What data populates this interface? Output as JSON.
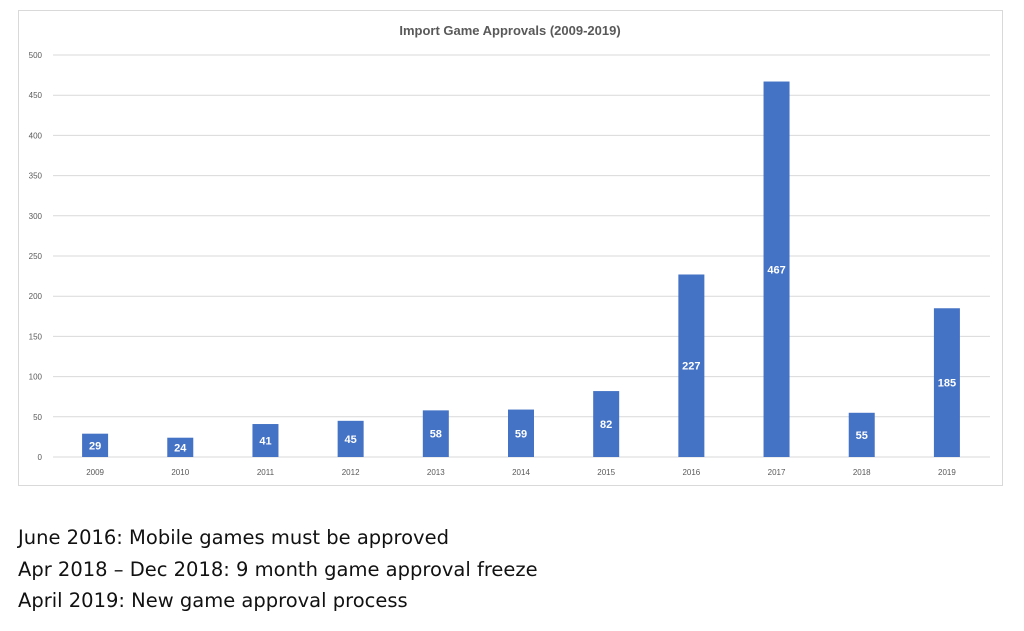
{
  "chart_data": {
    "type": "bar",
    "title": "Import Game Approvals (2009-2019)",
    "categories": [
      "2009",
      "2010",
      "2011",
      "2012",
      "2013",
      "2014",
      "2015",
      "2016",
      "2017",
      "2018",
      "2019"
    ],
    "values": [
      29,
      24,
      41,
      45,
      58,
      59,
      82,
      227,
      467,
      55,
      185
    ],
    "data_labels": [
      "29",
      "24",
      "41",
      "45",
      "58",
      "59",
      "82",
      "227",
      "467",
      "55",
      "185"
    ],
    "yticks": [
      "0",
      "50",
      "100",
      "150",
      "200",
      "250",
      "300",
      "350",
      "400",
      "450",
      "500"
    ],
    "ylim": [
      0,
      500
    ],
    "grid": true,
    "bar_color": "#4472c4",
    "xlabel": "",
    "ylabel": ""
  },
  "notes": [
    "June 2016: Mobile games must be approved",
    "Apr 2018 – Dec 2018: 9 month game approval freeze",
    "April 2019: New game approval process"
  ]
}
